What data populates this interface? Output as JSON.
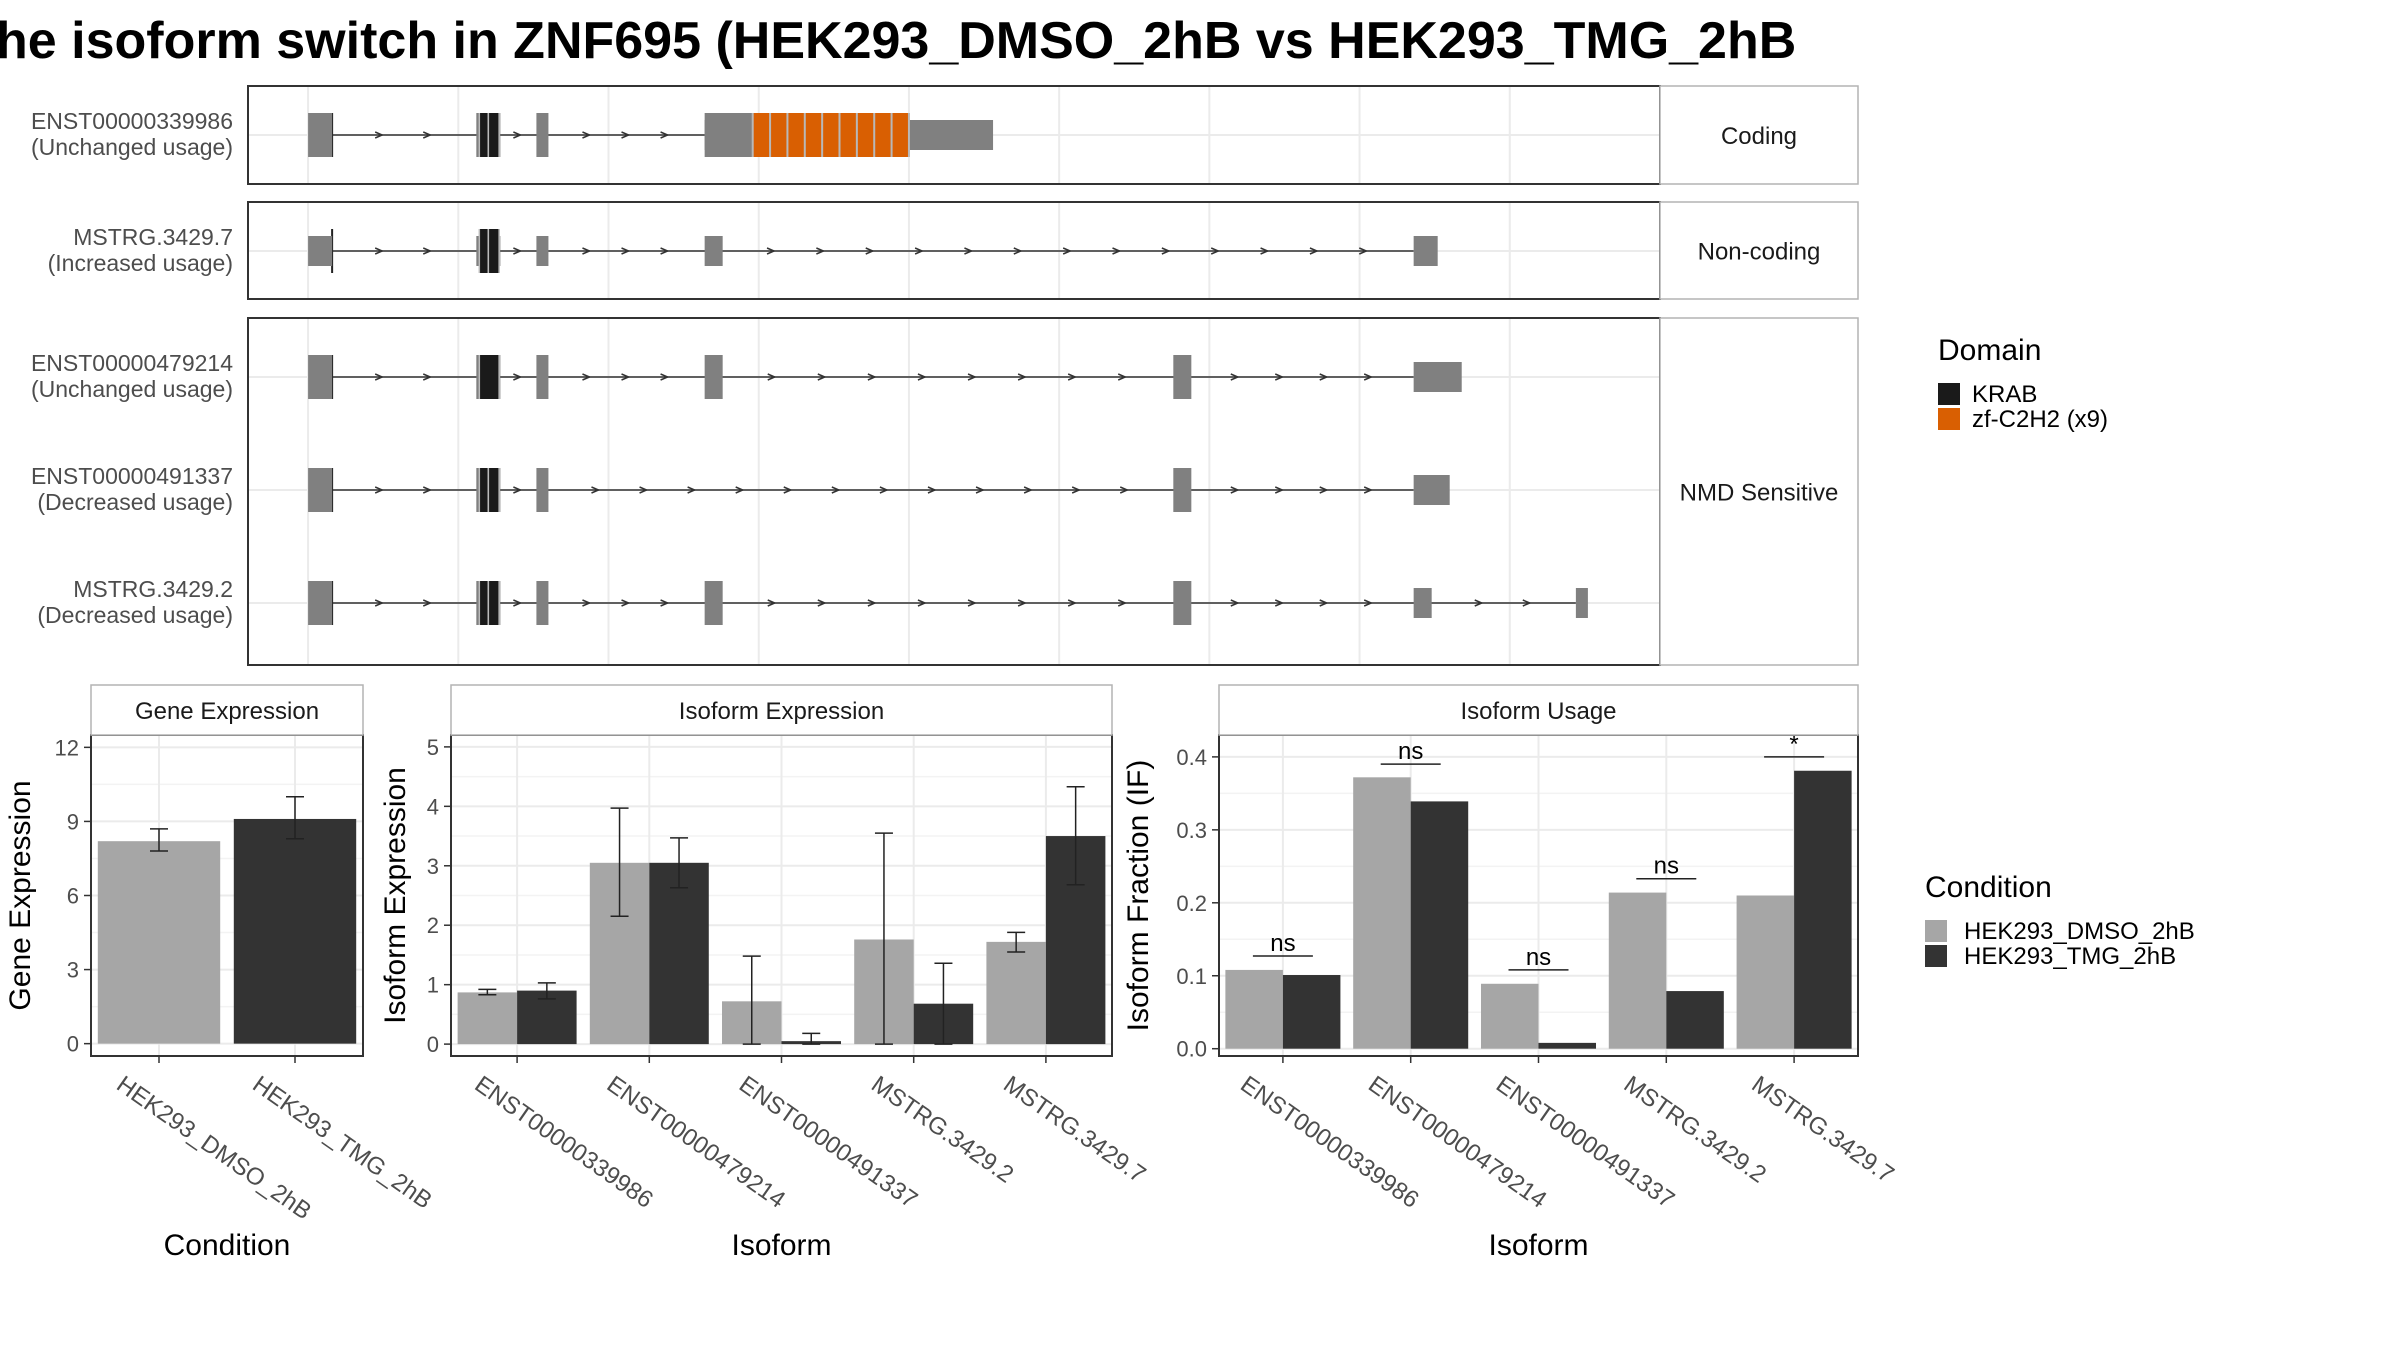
{
  "title": "he isoform switch in ZNF695 (HEK293_DMSO_2hB vs HEK293_TMG_2hB",
  "colors": {
    "exon": "#808080",
    "krab": "#1a1a1a",
    "znf": "#d95f02",
    "dmso": "#a6a6a6",
    "tmg": "#333333",
    "grid": "#ebebeb",
    "panel_border": "#333333",
    "strip_fill": "#ffffff"
  },
  "chart_data": [
    {
      "type": "transcript-structure",
      "facets": [
        {
          "label": "Coding",
          "transcripts": [
            0
          ]
        },
        {
          "label": "Non-coding",
          "transcripts": [
            1
          ]
        },
        {
          "label": "NMD Sensitive",
          "transcripts": [
            2,
            3,
            4
          ]
        }
      ],
      "transcripts": [
        {
          "id": "ENST00000339986",
          "note": "(Unchanged usage)",
          "exons": [
            [
              0.0,
              0.04
            ],
            [
              0.28,
              0.32
            ],
            [
              0.38,
              0.4
            ],
            [
              0.66,
              1.14
            ]
          ],
          "thick": [
            [
              0.0,
              0.04
            ],
            [
              0.28,
              0.32
            ],
            [
              0.38,
              0.4
            ],
            [
              0.66,
              1.0
            ]
          ],
          "domains": [
            {
              "name": "KRAB",
              "start": 0.285,
              "end": 0.3
            },
            {
              "name": "KRAB",
              "start": 0.3,
              "end": 0.318
            },
            {
              "name": "zf-C2H2 (x9)",
              "start": 0.74,
              "end": 1.0,
              "repeats": 9
            }
          ]
        },
        {
          "id": "MSTRG.3429.7",
          "note": "(Increased usage)",
          "exons": [
            [
              0.0,
              0.04
            ],
            [
              0.28,
              0.32
            ],
            [
              0.38,
              0.4
            ],
            [
              0.66,
              0.69
            ],
            [
              1.84,
              1.88
            ]
          ],
          "thick": [],
          "domains": [
            {
              "name": "KRAB",
              "start": 0.285,
              "end": 0.3
            },
            {
              "name": "KRAB",
              "start": 0.3,
              "end": 0.318
            }
          ]
        },
        {
          "id": "ENST00000479214",
          "note": "(Unchanged usage)",
          "exons": [
            [
              0.0,
              0.04
            ],
            [
              0.28,
              0.32
            ],
            [
              0.38,
              0.4
            ],
            [
              0.66,
              0.69
            ],
            [
              1.44,
              1.47
            ],
            [
              1.84,
              1.92
            ]
          ],
          "thick": [
            [
              0.0,
              0.04
            ],
            [
              0.28,
              0.32
            ],
            [
              0.38,
              0.4
            ],
            [
              0.66,
              0.69
            ],
            [
              1.44,
              1.47
            ]
          ],
          "domains": [
            {
              "name": "KRAB",
              "start": 0.285,
              "end": 0.318
            }
          ]
        },
        {
          "id": "ENST00000491337",
          "note": "(Decreased usage)",
          "exons": [
            [
              0.0,
              0.04
            ],
            [
              0.28,
              0.32
            ],
            [
              0.38,
              0.4
            ],
            [
              1.44,
              1.47
            ],
            [
              1.84,
              1.9
            ]
          ],
          "thick": [
            [
              0.0,
              0.04
            ],
            [
              0.28,
              0.32
            ],
            [
              0.38,
              0.4
            ],
            [
              1.44,
              1.47
            ]
          ],
          "domains": [
            {
              "name": "KRAB",
              "start": 0.285,
              "end": 0.3
            },
            {
              "name": "KRAB",
              "start": 0.3,
              "end": 0.318
            }
          ]
        },
        {
          "id": "MSTRG.3429.2",
          "note": "(Decreased usage)",
          "exons": [
            [
              0.0,
              0.04
            ],
            [
              0.28,
              0.32
            ],
            [
              0.38,
              0.4
            ],
            [
              0.66,
              0.69
            ],
            [
              1.44,
              1.47
            ],
            [
              1.84,
              1.87
            ],
            [
              2.11,
              2.13
            ]
          ],
          "thick": [
            [
              0.0,
              0.04
            ],
            [
              0.28,
              0.32
            ],
            [
              0.38,
              0.4
            ],
            [
              0.66,
              0.69
            ],
            [
              1.44,
              1.47
            ]
          ],
          "domains": [
            {
              "name": "KRAB",
              "start": 0.285,
              "end": 0.3
            },
            {
              "name": "KRAB",
              "start": 0.3,
              "end": 0.318
            }
          ]
        }
      ],
      "xlim": [
        -0.1,
        2.25
      ],
      "domain_legend": {
        "title": "Domain",
        "entries": [
          "KRAB",
          "zf-C2H2 (x9)"
        ]
      }
    },
    {
      "type": "bar",
      "strip": "Gene Expression",
      "xlabel": "Condition",
      "ylabel": "Gene Expression",
      "categories": [
        "HEK293_DMSO_2hB",
        "HEK293_TMG_2hB"
      ],
      "values": [
        8.2,
        9.1
      ],
      "err_low": [
        7.8,
        8.3
      ],
      "err_high": [
        8.7,
        10.0
      ],
      "ylim": [
        -0.5,
        12.5
      ],
      "yticks": [
        0,
        3,
        6,
        9,
        12
      ],
      "ytick_labels": [
        "0",
        "3",
        "6",
        "9",
        "12"
      ]
    },
    {
      "type": "bar",
      "strip": "Isoform Expression",
      "xlabel": "Isoform",
      "ylabel": "Isoform Expression",
      "categories": [
        "ENST00000339986",
        "ENST00000479214",
        "ENST00000491337",
        "MSTRG.3429.2",
        "MSTRG.3429.7"
      ],
      "series": [
        {
          "name": "HEK293_DMSO_2hB",
          "values": [
            0.87,
            3.05,
            0.72,
            1.76,
            1.72
          ],
          "err_low": [
            0.83,
            2.15,
            0.0,
            0.0,
            1.55
          ],
          "err_high": [
            0.92,
            3.97,
            1.48,
            3.55,
            1.88
          ]
        },
        {
          "name": "HEK293_TMG_2hB",
          "values": [
            0.9,
            3.05,
            0.05,
            0.68,
            3.5
          ],
          "err_low": [
            0.76,
            2.63,
            0.0,
            0.0,
            2.68
          ],
          "err_high": [
            1.03,
            3.47,
            0.18,
            1.36,
            4.33
          ]
        }
      ],
      "ylim": [
        -0.2,
        5.2
      ],
      "yticks": [
        0,
        1,
        2,
        3,
        4,
        5
      ],
      "ytick_labels": [
        "0",
        "1",
        "2",
        "3",
        "4",
        "5"
      ]
    },
    {
      "type": "bar",
      "strip": "Isoform Usage",
      "xlabel": "Isoform",
      "ylabel": "Isoform Fraction (IF)",
      "categories": [
        "ENST00000339986",
        "ENST00000479214",
        "ENST00000491337",
        "MSTRG.3429.2",
        "MSTRG.3429.7"
      ],
      "series": [
        {
          "name": "HEK293_DMSO_2hB",
          "values": [
            0.108,
            0.372,
            0.089,
            0.214,
            0.21
          ]
        },
        {
          "name": "HEK293_TMG_2hB",
          "values": [
            0.101,
            0.339,
            0.008,
            0.079,
            0.381
          ]
        }
      ],
      "significance": [
        {
          "label": "ns",
          "y": 0.127
        },
        {
          "label": "ns",
          "y": 0.39
        },
        {
          "label": "ns",
          "y": 0.108
        },
        {
          "label": "ns",
          "y": 0.233
        },
        {
          "label": "*",
          "y": 0.4
        }
      ],
      "ylim": [
        -0.01,
        0.43
      ],
      "yticks": [
        0.0,
        0.1,
        0.2,
        0.3,
        0.4
      ],
      "ytick_labels": [
        "0.0",
        "0.1",
        "0.2",
        "0.3",
        "0.4"
      ]
    }
  ],
  "condition_legend": {
    "title": "Condition",
    "entries": [
      "HEK293_DMSO_2hB",
      "HEK293_TMG_2hB"
    ]
  }
}
